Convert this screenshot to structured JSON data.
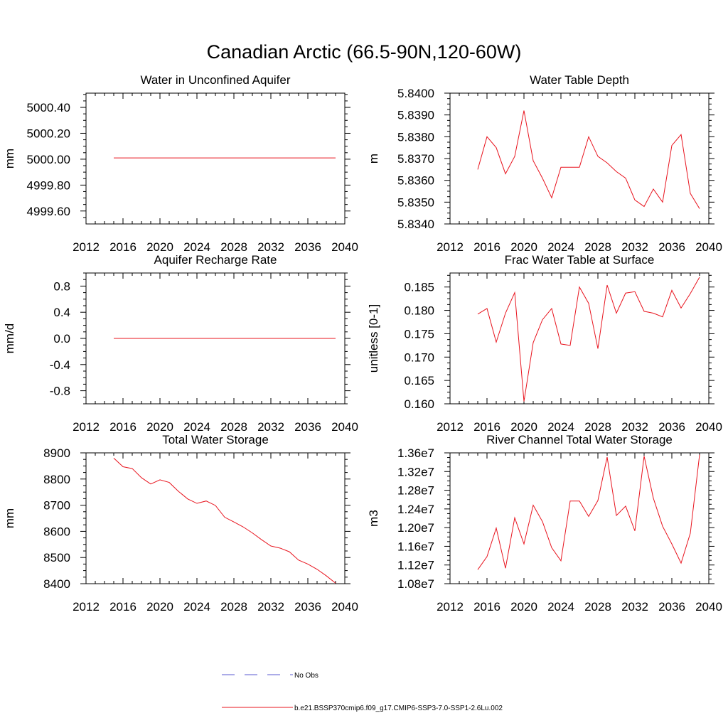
{
  "figure": {
    "title": "Canadian Arctic (66.5-90N,120-60W)"
  },
  "legend": [
    {
      "label": "No Obs",
      "color": "#5a5ad0",
      "style": "dashed"
    },
    {
      "label": "b.e21.BSSP370cmip6.f09_g17.CMIP6-SSP3-7.0-SSP1-2.6Lu.002",
      "color": "#e8141e",
      "style": "solid"
    }
  ],
  "chart_data": [
    {
      "id": "aquifer",
      "type": "line",
      "title": "Water in Unconfined Aquifer",
      "ylabel": "mm",
      "xlim": [
        2012,
        2040
      ],
      "ylim": [
        4999.5,
        5000.51
      ],
      "xticks": [
        "2012",
        "2016",
        "2020",
        "2024",
        "2028",
        "2032",
        "2036",
        "2040"
      ],
      "yticks": [
        4999.6,
        4999.8,
        5000.0,
        5000.2,
        5000.4
      ],
      "ytick_labels": [
        "4999.60",
        "4999.80",
        "5000.00",
        "5000.20",
        "5000.40"
      ],
      "series": [
        {
          "color": "#e8141e",
          "x": [
            2015,
            2016,
            2017,
            2018,
            2019,
            2020,
            2021,
            2022,
            2023,
            2024,
            2025,
            2026,
            2027,
            2028,
            2029,
            2030,
            2031,
            2032,
            2033,
            2034,
            2035,
            2036,
            2037,
            2038,
            2039
          ],
          "y": [
            5000.01,
            5000.01,
            5000.01,
            5000.01,
            5000.01,
            5000.01,
            5000.01,
            5000.01,
            5000.01,
            5000.01,
            5000.01,
            5000.01,
            5000.01,
            5000.01,
            5000.01,
            5000.01,
            5000.01,
            5000.01,
            5000.01,
            5000.01,
            5000.01,
            5000.01,
            5000.01,
            5000.01,
            5000.01
          ]
        }
      ]
    },
    {
      "id": "wtd",
      "type": "line",
      "title": "Water Table Depth",
      "ylabel": "m",
      "xlim": [
        2012,
        2040
      ],
      "ylim": [
        5.834,
        5.84
      ],
      "xticks": [
        "2012",
        "2016",
        "2020",
        "2024",
        "2028",
        "2032",
        "2036",
        "2040"
      ],
      "yticks": [
        5.834,
        5.835,
        5.836,
        5.837,
        5.838,
        5.839,
        5.84
      ],
      "ytick_labels": [
        "5.8340",
        "5.8350",
        "5.8360",
        "5.8370",
        "5.8380",
        "5.8390",
        "5.8400"
      ],
      "series": [
        {
          "color": "#e8141e",
          "x": [
            2015,
            2016,
            2017,
            2018,
            2019,
            2020,
            2021,
            2022,
            2023,
            2024,
            2025,
            2026,
            2027,
            2028,
            2029,
            2030,
            2031,
            2032,
            2033,
            2034,
            2035,
            2036,
            2037,
            2038,
            2039
          ],
          "y": [
            5.8365,
            5.838,
            5.8375,
            5.8363,
            5.8371,
            5.8392,
            5.8369,
            5.8361,
            5.8352,
            5.8366,
            5.8366,
            5.8366,
            5.838,
            5.8371,
            5.8368,
            5.8364,
            5.8361,
            5.8351,
            5.8348,
            5.8356,
            5.835,
            5.8376,
            5.8381,
            5.8354,
            5.8347
          ]
        }
      ]
    },
    {
      "id": "recharge",
      "type": "line",
      "title": "Aquifer Recharge Rate",
      "ylabel": "mm/d",
      "xlim": [
        2012,
        2040
      ],
      "ylim": [
        -1.0,
        1.0
      ],
      "xticks": [
        "2012",
        "2016",
        "2020",
        "2024",
        "2028",
        "2032",
        "2036",
        "2040"
      ],
      "yticks": [
        -0.8,
        -0.4,
        0.0,
        0.4,
        0.8
      ],
      "ytick_labels": [
        "-0.8",
        "-0.4",
        "0.0",
        "0.4",
        "0.8"
      ],
      "series": [
        {
          "color": "#e8141e",
          "x": [
            2015,
            2016,
            2017,
            2018,
            2019,
            2020,
            2021,
            2022,
            2023,
            2024,
            2025,
            2026,
            2027,
            2028,
            2029,
            2030,
            2031,
            2032,
            2033,
            2034,
            2035,
            2036,
            2037,
            2038,
            2039
          ],
          "y": [
            0,
            0,
            0,
            0,
            0,
            0,
            0,
            0,
            0,
            0,
            0,
            0,
            0,
            0,
            0,
            0,
            0,
            0,
            0,
            0,
            0,
            0,
            0,
            0,
            0
          ]
        }
      ]
    },
    {
      "id": "fwet",
      "type": "line",
      "title": "Frac Water Table at Surface",
      "ylabel": "unitless [0-1]",
      "xlim": [
        2012,
        2040
      ],
      "ylim": [
        0.16,
        0.188
      ],
      "xticks": [
        "2012",
        "2016",
        "2020",
        "2024",
        "2028",
        "2032",
        "2036",
        "2040"
      ],
      "yticks": [
        0.16,
        0.165,
        0.17,
        0.175,
        0.18,
        0.185
      ],
      "ytick_labels": [
        "0.160",
        "0.165",
        "0.170",
        "0.175",
        "0.180",
        "0.185"
      ],
      "series": [
        {
          "color": "#e8141e",
          "x": [
            2015,
            2016,
            2017,
            2018,
            2019,
            2020,
            2021,
            2022,
            2023,
            2024,
            2025,
            2026,
            2027,
            2028,
            2029,
            2030,
            2031,
            2032,
            2033,
            2034,
            2035,
            2036,
            2037,
            2038,
            2039
          ],
          "y": [
            0.1792,
            0.1804,
            0.1732,
            0.1794,
            0.1838,
            0.1605,
            0.1731,
            0.178,
            0.1804,
            0.1728,
            0.1725,
            0.185,
            0.1815,
            0.1718,
            0.1854,
            0.1794,
            0.1837,
            0.184,
            0.1798,
            0.1794,
            0.1786,
            0.1843,
            0.1805,
            0.1836,
            0.1871
          ]
        }
      ]
    },
    {
      "id": "tws",
      "type": "line",
      "title": "Total Water Storage",
      "ylabel": "mm",
      "xlim": [
        2012,
        2040
      ],
      "ylim": [
        8400,
        8900
      ],
      "xticks": [
        "2012",
        "2016",
        "2020",
        "2024",
        "2028",
        "2032",
        "2036",
        "2040"
      ],
      "yticks": [
        8400,
        8500,
        8600,
        8700,
        8800,
        8900
      ],
      "ytick_labels": [
        "8400",
        "8500",
        "8600",
        "8700",
        "8800",
        "8900"
      ],
      "series": [
        {
          "color": "#e8141e",
          "x": [
            2015,
            2016,
            2017,
            2018,
            2019,
            2020,
            2021,
            2022,
            2023,
            2024,
            2025,
            2026,
            2027,
            2028,
            2029,
            2030,
            2031,
            2032,
            2033,
            2034,
            2035,
            2036,
            2037,
            2038,
            2039
          ],
          "y": [
            8880,
            8847,
            8840,
            8805,
            8781,
            8797,
            8787,
            8753,
            8724,
            8707,
            8716,
            8699,
            8654,
            8636,
            8617,
            8594,
            8568,
            8544,
            8536,
            8522,
            8490,
            8475,
            8455,
            8430,
            8402
          ]
        }
      ]
    },
    {
      "id": "river",
      "type": "line",
      "title": "River Channel Total Water Storage",
      "ylabel": "m3",
      "xlim": [
        2012,
        2040
      ],
      "ylim": [
        10800000,
        13600000
      ],
      "xticks": [
        "2012",
        "2016",
        "2020",
        "2024",
        "2028",
        "2032",
        "2036",
        "2040"
      ],
      "yticks": [
        10800000,
        11200000,
        11600000,
        12000000,
        12400000,
        12800000,
        13200000,
        13600000
      ],
      "ytick_labels": [
        "1.08e7",
        "1.12e7",
        "1.16e7",
        "1.20e7",
        "1.24e7",
        "1.28e7",
        "1.32e7",
        "1.36e7"
      ],
      "series": [
        {
          "color": "#e8141e",
          "x": [
            2015,
            2016,
            2017,
            2018,
            2019,
            2020,
            2021,
            2022,
            2023,
            2024,
            2025,
            2026,
            2027,
            2028,
            2029,
            2030,
            2031,
            2032,
            2033,
            2034,
            2035,
            2036,
            2037,
            2038,
            2039
          ],
          "y": [
            11100000,
            11380000,
            11990000,
            11130000,
            12210000,
            11650000,
            12480000,
            12130000,
            11570000,
            11290000,
            12570000,
            12570000,
            12240000,
            12580000,
            13510000,
            12260000,
            12460000,
            11930000,
            13530000,
            12630000,
            12030000,
            11650000,
            11240000,
            11880000,
            13560000
          ]
        }
      ]
    }
  ]
}
